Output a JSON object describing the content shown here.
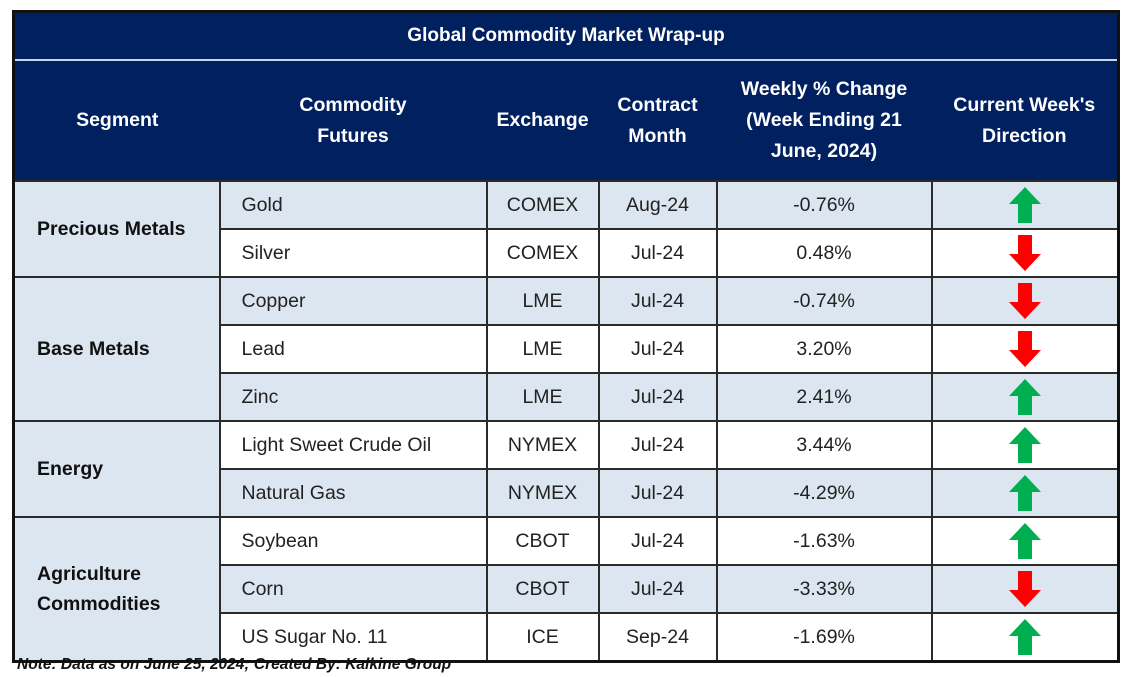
{
  "title": "Global Commodity Market Wrap-up",
  "headers": [
    "Segment",
    "Commodity Futures",
    "Exchange",
    "Contract Month",
    "Weekly % Change (Week Ending 21 June, 2024)",
    "Current Week's Direction"
  ],
  "header_lines": {
    "segment": [
      "Segment"
    ],
    "commodity": [
      "Commodity",
      "Futures"
    ],
    "exchange": [
      "Exchange"
    ],
    "contract": [
      "Contract",
      "Month"
    ],
    "weekly": [
      "Weekly % Change",
      "(Week Ending 21",
      "June, 2024)"
    ],
    "direction": [
      "Current Week's",
      "Direction"
    ]
  },
  "segments": [
    {
      "label_lines": [
        "Precious Metals"
      ]
    },
    {
      "label_lines": [
        "Base Metals"
      ]
    },
    {
      "label_lines": [
        "Energy"
      ]
    },
    {
      "label_lines": [
        "Agriculture",
        "Commodities"
      ]
    }
  ],
  "rows": [
    {
      "commodity": "Gold",
      "exchange": "COMEX",
      "contract": "Aug-24",
      "change": "-0.76%",
      "direction": "up"
    },
    {
      "commodity": "Silver",
      "exchange": "COMEX",
      "contract": "Jul-24",
      "change": "0.48%",
      "direction": "down"
    },
    {
      "commodity": "Copper",
      "exchange": "LME",
      "contract": "Jul-24",
      "change": "-0.74%",
      "direction": "down"
    },
    {
      "commodity": "Lead",
      "exchange": "LME",
      "contract": "Jul-24",
      "change": "3.20%",
      "direction": "down"
    },
    {
      "commodity": "Zinc",
      "exchange": "LME",
      "contract": "Jul-24",
      "change": "2.41%",
      "direction": "up"
    },
    {
      "commodity": "Light Sweet Crude Oil",
      "exchange": "NYMEX",
      "contract": "Jul-24",
      "change": "3.44%",
      "direction": "up"
    },
    {
      "commodity": "Natural Gas",
      "exchange": "NYMEX",
      "contract": "Jul-24",
      "change": "-4.29%",
      "direction": "up"
    },
    {
      "commodity": "Soybean",
      "exchange": "CBOT",
      "contract": "Jul-24",
      "change": "-1.63%",
      "direction": "up"
    },
    {
      "commodity": "Corn",
      "exchange": "CBOT",
      "contract": "Jul-24",
      "change": "-3.33%",
      "direction": "down"
    },
    {
      "commodity": "US Sugar No. 11",
      "exchange": "ICE",
      "contract": "Sep-24",
      "change": "-1.69%",
      "direction": "up"
    }
  ],
  "note": "Note: Data as on June 25, 2024; Created By: Kalkine Group",
  "colors": {
    "header_bg": "#002060",
    "shade": "#dce6f1",
    "up": "#00b050",
    "down": "#ff0000"
  }
}
